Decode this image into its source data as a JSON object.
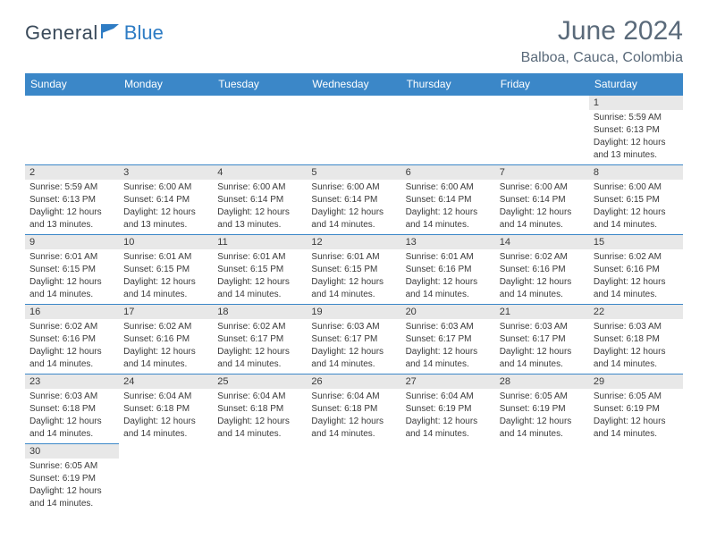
{
  "brand": {
    "general": "General",
    "blue": "Blue"
  },
  "title": "June 2024",
  "location": "Balboa, Cauca, Colombia",
  "colors": {
    "header_bg": "#3b87c8",
    "header_text": "#ffffff",
    "daynum_bg": "#e8e8e8",
    "border": "#3b87c8",
    "body_text": "#3a3a3a",
    "title_text": "#5a6a7a",
    "brand_blue": "#2e7cc4"
  },
  "weekdays": [
    "Sunday",
    "Monday",
    "Tuesday",
    "Wednesday",
    "Thursday",
    "Friday",
    "Saturday"
  ],
  "cells": [
    {
      "n": "",
      "sr": "",
      "ss": "",
      "dl": ""
    },
    {
      "n": "",
      "sr": "",
      "ss": "",
      "dl": ""
    },
    {
      "n": "",
      "sr": "",
      "ss": "",
      "dl": ""
    },
    {
      "n": "",
      "sr": "",
      "ss": "",
      "dl": ""
    },
    {
      "n": "",
      "sr": "",
      "ss": "",
      "dl": ""
    },
    {
      "n": "",
      "sr": "",
      "ss": "",
      "dl": ""
    },
    {
      "n": "1",
      "sr": "Sunrise: 5:59 AM",
      "ss": "Sunset: 6:13 PM",
      "dl": "Daylight: 12 hours and 13 minutes."
    },
    {
      "n": "2",
      "sr": "Sunrise: 5:59 AM",
      "ss": "Sunset: 6:13 PM",
      "dl": "Daylight: 12 hours and 13 minutes."
    },
    {
      "n": "3",
      "sr": "Sunrise: 6:00 AM",
      "ss": "Sunset: 6:14 PM",
      "dl": "Daylight: 12 hours and 13 minutes."
    },
    {
      "n": "4",
      "sr": "Sunrise: 6:00 AM",
      "ss": "Sunset: 6:14 PM",
      "dl": "Daylight: 12 hours and 13 minutes."
    },
    {
      "n": "5",
      "sr": "Sunrise: 6:00 AM",
      "ss": "Sunset: 6:14 PM",
      "dl": "Daylight: 12 hours and 14 minutes."
    },
    {
      "n": "6",
      "sr": "Sunrise: 6:00 AM",
      "ss": "Sunset: 6:14 PM",
      "dl": "Daylight: 12 hours and 14 minutes."
    },
    {
      "n": "7",
      "sr": "Sunrise: 6:00 AM",
      "ss": "Sunset: 6:14 PM",
      "dl": "Daylight: 12 hours and 14 minutes."
    },
    {
      "n": "8",
      "sr": "Sunrise: 6:00 AM",
      "ss": "Sunset: 6:15 PM",
      "dl": "Daylight: 12 hours and 14 minutes."
    },
    {
      "n": "9",
      "sr": "Sunrise: 6:01 AM",
      "ss": "Sunset: 6:15 PM",
      "dl": "Daylight: 12 hours and 14 minutes."
    },
    {
      "n": "10",
      "sr": "Sunrise: 6:01 AM",
      "ss": "Sunset: 6:15 PM",
      "dl": "Daylight: 12 hours and 14 minutes."
    },
    {
      "n": "11",
      "sr": "Sunrise: 6:01 AM",
      "ss": "Sunset: 6:15 PM",
      "dl": "Daylight: 12 hours and 14 minutes."
    },
    {
      "n": "12",
      "sr": "Sunrise: 6:01 AM",
      "ss": "Sunset: 6:15 PM",
      "dl": "Daylight: 12 hours and 14 minutes."
    },
    {
      "n": "13",
      "sr": "Sunrise: 6:01 AM",
      "ss": "Sunset: 6:16 PM",
      "dl": "Daylight: 12 hours and 14 minutes."
    },
    {
      "n": "14",
      "sr": "Sunrise: 6:02 AM",
      "ss": "Sunset: 6:16 PM",
      "dl": "Daylight: 12 hours and 14 minutes."
    },
    {
      "n": "15",
      "sr": "Sunrise: 6:02 AM",
      "ss": "Sunset: 6:16 PM",
      "dl": "Daylight: 12 hours and 14 minutes."
    },
    {
      "n": "16",
      "sr": "Sunrise: 6:02 AM",
      "ss": "Sunset: 6:16 PM",
      "dl": "Daylight: 12 hours and 14 minutes."
    },
    {
      "n": "17",
      "sr": "Sunrise: 6:02 AM",
      "ss": "Sunset: 6:16 PM",
      "dl": "Daylight: 12 hours and 14 minutes."
    },
    {
      "n": "18",
      "sr": "Sunrise: 6:02 AM",
      "ss": "Sunset: 6:17 PM",
      "dl": "Daylight: 12 hours and 14 minutes."
    },
    {
      "n": "19",
      "sr": "Sunrise: 6:03 AM",
      "ss": "Sunset: 6:17 PM",
      "dl": "Daylight: 12 hours and 14 minutes."
    },
    {
      "n": "20",
      "sr": "Sunrise: 6:03 AM",
      "ss": "Sunset: 6:17 PM",
      "dl": "Daylight: 12 hours and 14 minutes."
    },
    {
      "n": "21",
      "sr": "Sunrise: 6:03 AM",
      "ss": "Sunset: 6:17 PM",
      "dl": "Daylight: 12 hours and 14 minutes."
    },
    {
      "n": "22",
      "sr": "Sunrise: 6:03 AM",
      "ss": "Sunset: 6:18 PM",
      "dl": "Daylight: 12 hours and 14 minutes."
    },
    {
      "n": "23",
      "sr": "Sunrise: 6:03 AM",
      "ss": "Sunset: 6:18 PM",
      "dl": "Daylight: 12 hours and 14 minutes."
    },
    {
      "n": "24",
      "sr": "Sunrise: 6:04 AM",
      "ss": "Sunset: 6:18 PM",
      "dl": "Daylight: 12 hours and 14 minutes."
    },
    {
      "n": "25",
      "sr": "Sunrise: 6:04 AM",
      "ss": "Sunset: 6:18 PM",
      "dl": "Daylight: 12 hours and 14 minutes."
    },
    {
      "n": "26",
      "sr": "Sunrise: 6:04 AM",
      "ss": "Sunset: 6:18 PM",
      "dl": "Daylight: 12 hours and 14 minutes."
    },
    {
      "n": "27",
      "sr": "Sunrise: 6:04 AM",
      "ss": "Sunset: 6:19 PM",
      "dl": "Daylight: 12 hours and 14 minutes."
    },
    {
      "n": "28",
      "sr": "Sunrise: 6:05 AM",
      "ss": "Sunset: 6:19 PM",
      "dl": "Daylight: 12 hours and 14 minutes."
    },
    {
      "n": "29",
      "sr": "Sunrise: 6:05 AM",
      "ss": "Sunset: 6:19 PM",
      "dl": "Daylight: 12 hours and 14 minutes."
    },
    {
      "n": "30",
      "sr": "Sunrise: 6:05 AM",
      "ss": "Sunset: 6:19 PM",
      "dl": "Daylight: 12 hours and 14 minutes."
    },
    {
      "n": "",
      "sr": "",
      "ss": "",
      "dl": ""
    },
    {
      "n": "",
      "sr": "",
      "ss": "",
      "dl": ""
    },
    {
      "n": "",
      "sr": "",
      "ss": "",
      "dl": ""
    },
    {
      "n": "",
      "sr": "",
      "ss": "",
      "dl": ""
    },
    {
      "n": "",
      "sr": "",
      "ss": "",
      "dl": ""
    },
    {
      "n": "",
      "sr": "",
      "ss": "",
      "dl": ""
    }
  ]
}
